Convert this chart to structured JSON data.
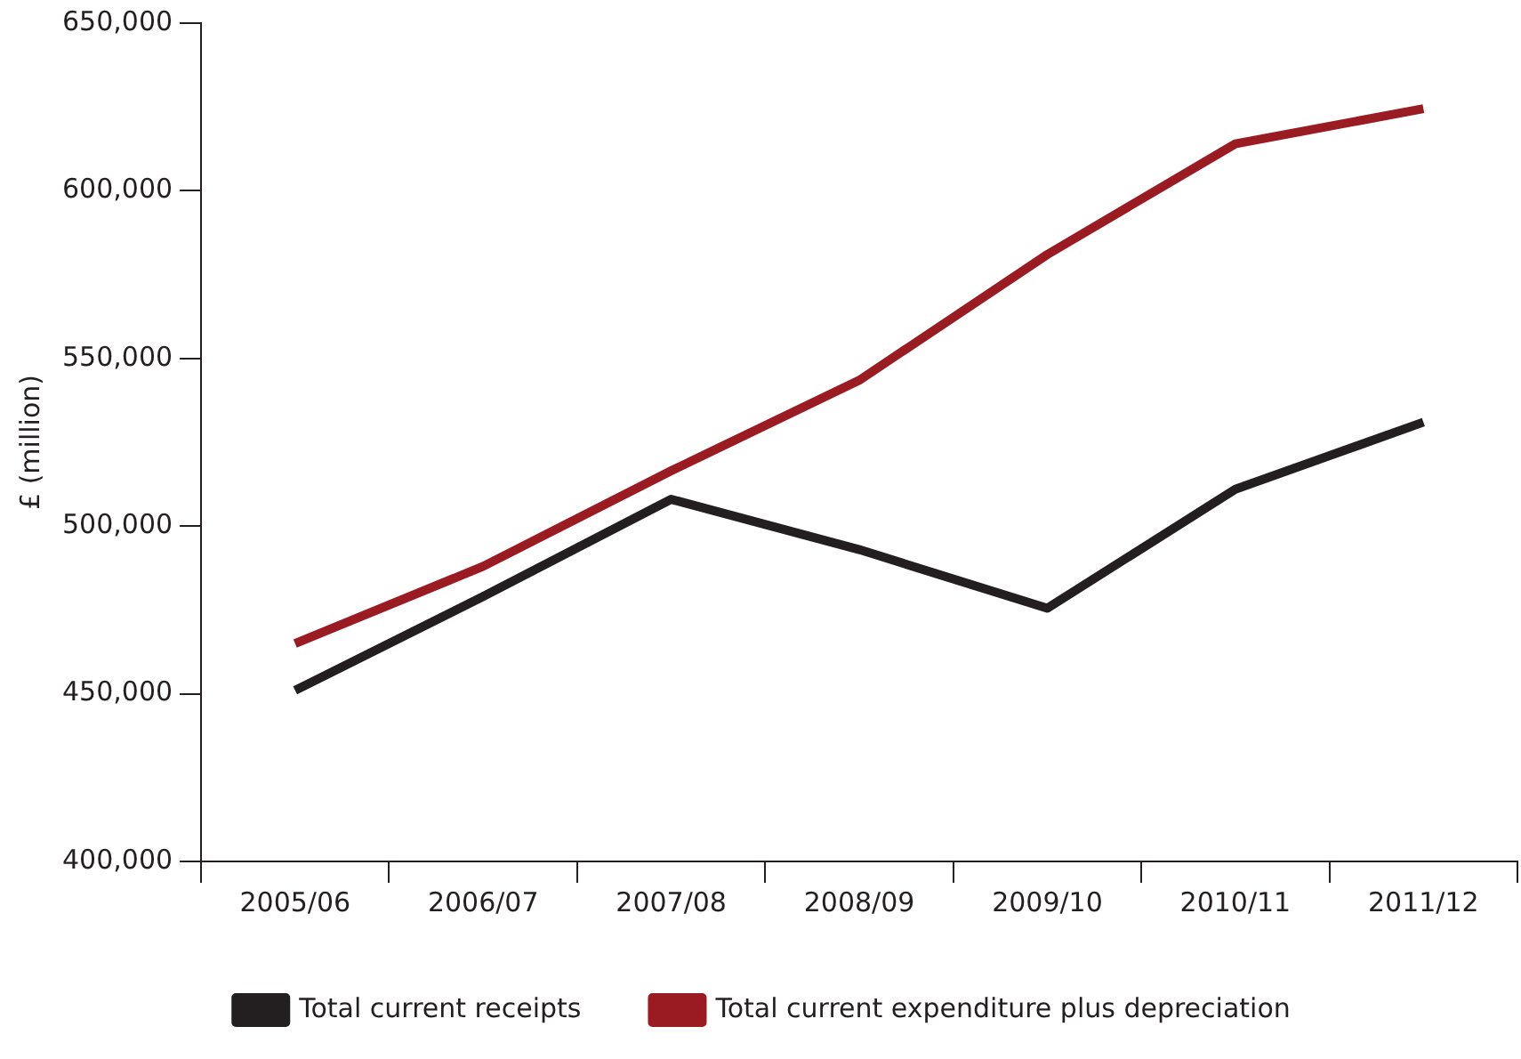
{
  "chart_data": {
    "type": "line",
    "ylabel": "£ (million)",
    "categories": [
      "2005/06",
      "2006/07",
      "2007/08",
      "2008/09",
      "2009/10",
      "2010/11",
      "2011/12"
    ],
    "series": [
      {
        "name": "Total current receipts",
        "color": "#231f20",
        "values": [
          451000,
          479000,
          508000,
          493000,
          475500,
          511000,
          531000
        ]
      },
      {
        "name": "Total current expenditure plus depreciation",
        "color": "#9b1b22",
        "values": [
          465000,
          488000,
          516500,
          543500,
          581000,
          614000,
          624500
        ]
      }
    ],
    "ylim": [
      400000,
      650000
    ],
    "yticks": [
      {
        "value": 400000,
        "label": "400,000"
      },
      {
        "value": 450000,
        "label": "450,000"
      },
      {
        "value": 500000,
        "label": "500,000"
      },
      {
        "value": 550000,
        "label": "550,000"
      },
      {
        "value": 600000,
        "label": "600,000"
      },
      {
        "value": 650000,
        "label": "650,000"
      }
    ],
    "grid": false,
    "legend": "bottom",
    "marker": "none",
    "line_style": "solid"
  }
}
